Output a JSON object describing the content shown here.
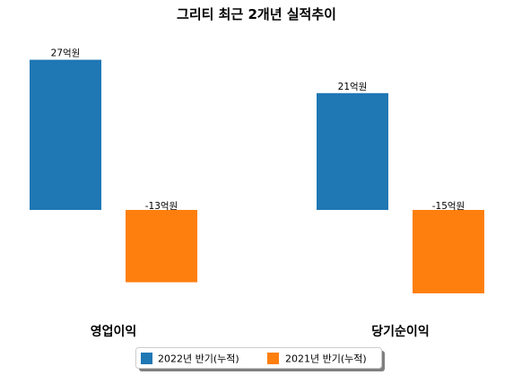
{
  "chart_data": {
    "type": "bar",
    "title": "그리티 최근 2개년 실적추이",
    "categories": [
      "영업이익",
      "당기순이익"
    ],
    "series": [
      {
        "name": "2022년 반기(누적)",
        "color": "#1f77b4",
        "values": [
          27,
          21
        ],
        "labels": [
          "27억원",
          "21억원"
        ]
      },
      {
        "name": "2021년 반기(누적)",
        "color": "#ff7f0e",
        "values": [
          -13,
          -15
        ],
        "labels": [
          "-13억원",
          "-15억원"
        ]
      }
    ],
    "xlabel": "",
    "ylabel": "",
    "unit": "억원",
    "grid": false,
    "axes_visible": false,
    "legend_position": "bottom-center"
  }
}
